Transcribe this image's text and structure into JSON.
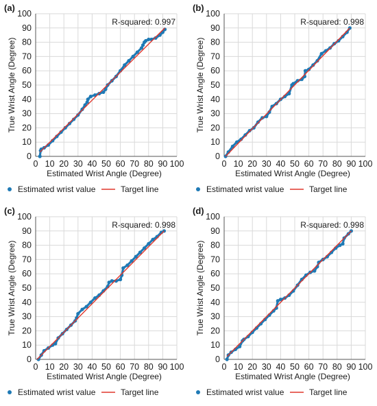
{
  "colors": {
    "points": "#1f7ab5",
    "target": "#e0362c",
    "grid": "#d9d9d9"
  },
  "chart_data": [
    {
      "panel_label": "(a)",
      "type": "scatter",
      "r_squared_label": "R-squared: 0.997",
      "xlabel": "Estimated Wrist Angle (Degree)",
      "ylabel": "True Wrist Angle (Degree)",
      "xlim": [
        0,
        100
      ],
      "ylim": [
        0,
        100
      ],
      "grid": true,
      "xticks": [
        0,
        10,
        20,
        30,
        40,
        50,
        60,
        70,
        80,
        90,
        100
      ],
      "yticks": [
        0,
        10,
        20,
        30,
        40,
        50,
        60,
        70,
        80,
        90,
        100
      ],
      "series": [
        {
          "name": "Estimated wrist value",
          "kind": "points",
          "x": [
            3,
            3.5,
            4,
            6,
            9,
            12,
            15,
            18,
            21,
            24,
            27,
            30,
            33,
            35,
            36.5,
            37,
            39,
            42,
            45,
            48,
            49.5,
            51,
            54,
            57,
            60,
            63,
            66,
            69,
            72,
            75,
            76,
            77,
            78,
            80,
            82,
            85,
            88,
            90,
            91.5
          ],
          "y": [
            0,
            4,
            5,
            6,
            8,
            11,
            14,
            17,
            20,
            23,
            26,
            29,
            33,
            36,
            38,
            40,
            42,
            43,
            44,
            45,
            47,
            50,
            53,
            56,
            60,
            64,
            67,
            70,
            73,
            76,
            78,
            80,
            81,
            82,
            82,
            83,
            85,
            87,
            89
          ]
        },
        {
          "name": "Target line",
          "kind": "line",
          "x": [
            3,
            91.5
          ],
          "y": [
            3,
            90
          ]
        }
      ]
    },
    {
      "panel_label": "(b)",
      "type": "scatter",
      "r_squared_label": "R-squared: 0.998",
      "xlabel": "Estimated Wrist Angle (Degree)",
      "ylabel": "True Wrist Angle (Degree)",
      "xlim": [
        0,
        100
      ],
      "ylim": [
        0,
        100
      ],
      "grid": true,
      "xticks": [
        0,
        10,
        20,
        30,
        40,
        50,
        60,
        70,
        80,
        90,
        100
      ],
      "yticks": [
        0,
        10,
        20,
        30,
        40,
        50,
        60,
        70,
        80,
        90,
        100
      ],
      "series": [
        {
          "name": "Estimated wrist value",
          "kind": "points",
          "x": [
            1,
            3,
            6,
            9,
            12,
            15,
            18,
            21,
            24,
            27,
            30,
            32,
            34,
            37,
            40,
            43,
            46,
            48,
            49,
            52,
            55,
            57,
            57.5,
            60,
            63,
            66,
            69,
            72,
            75,
            78,
            81,
            84,
            87,
            89
          ],
          "y": [
            0,
            3,
            7,
            10,
            12,
            15,
            18,
            20,
            24,
            27,
            28,
            31,
            35,
            37,
            40,
            42,
            44,
            50,
            51,
            53,
            54,
            56,
            60,
            61,
            64,
            67,
            72,
            74,
            76,
            79,
            81,
            84,
            87,
            90
          ]
        },
        {
          "name": "Target line",
          "kind": "line",
          "x": [
            1,
            89
          ],
          "y": [
            0,
            90
          ]
        }
      ]
    },
    {
      "panel_label": "(c)",
      "type": "scatter",
      "r_squared_label": "R-squared: 0.998",
      "xlabel": "Estimated Wrist Angle (Degree)",
      "ylabel": "True Wrist Angle (Degree)",
      "xlim": [
        0,
        100
      ],
      "ylim": [
        0,
        100
      ],
      "grid": true,
      "xticks": [
        0,
        10,
        20,
        30,
        40,
        50,
        60,
        70,
        80,
        90,
        100
      ],
      "yticks": [
        0,
        10,
        20,
        30,
        40,
        50,
        60,
        70,
        80,
        90,
        100
      ],
      "series": [
        {
          "name": "Estimated wrist value",
          "kind": "points",
          "x": [
            2,
            4,
            6,
            9,
            12,
            14,
            16,
            19,
            22,
            25,
            28,
            29,
            30,
            33,
            36,
            39,
            42,
            45,
            48,
            51,
            52,
            54,
            57,
            60,
            61,
            62,
            65,
            68,
            71,
            74,
            77,
            80,
            83,
            86,
            89,
            91
          ],
          "y": [
            0,
            3,
            6,
            8,
            10,
            11,
            15,
            18,
            21,
            24,
            27,
            29,
            32,
            35,
            37,
            40,
            43,
            45,
            48,
            51,
            54,
            55,
            55,
            56,
            59,
            64,
            66,
            69,
            72,
            75,
            78,
            81,
            84,
            86,
            89,
            90
          ]
        },
        {
          "name": "Target line",
          "kind": "line",
          "x": [
            1,
            91
          ],
          "y": [
            0,
            90
          ]
        }
      ]
    },
    {
      "panel_label": "(d)",
      "type": "scatter",
      "r_squared_label": "R-squared: 0.998",
      "xlabel": "Estimated Wrist Angle (Degree)",
      "ylabel": "True Wrist Angle (Degree)",
      "xlim": [
        0,
        100
      ],
      "ylim": [
        0,
        100
      ],
      "grid": true,
      "xticks": [
        0,
        10,
        20,
        30,
        40,
        50,
        60,
        70,
        80,
        90,
        100
      ],
      "yticks": [
        0,
        10,
        20,
        30,
        40,
        50,
        60,
        70,
        80,
        90,
        100
      ],
      "series": [
        {
          "name": "Estimated wrist value",
          "kind": "points",
          "x": [
            2,
            3,
            5,
            8,
            11,
            13,
            14,
            17,
            20,
            23,
            26,
            29,
            32,
            35,
            37,
            38,
            40,
            43,
            46,
            49,
            52,
            55,
            58,
            61,
            64,
            66,
            67,
            70,
            73,
            76,
            79,
            82,
            84,
            85,
            88,
            90
          ],
          "y": [
            0,
            3,
            5,
            7,
            9,
            13,
            14,
            16,
            19,
            22,
            25,
            28,
            31,
            34,
            36,
            41,
            42,
            43,
            45,
            48,
            52,
            56,
            59,
            61,
            62,
            65,
            68,
            70,
            72,
            75,
            78,
            80,
            81,
            85,
            88,
            90
          ]
        },
        {
          "name": "Target line",
          "kind": "line",
          "x": [
            2,
            90
          ],
          "y": [
            2,
            90
          ]
        }
      ]
    }
  ]
}
